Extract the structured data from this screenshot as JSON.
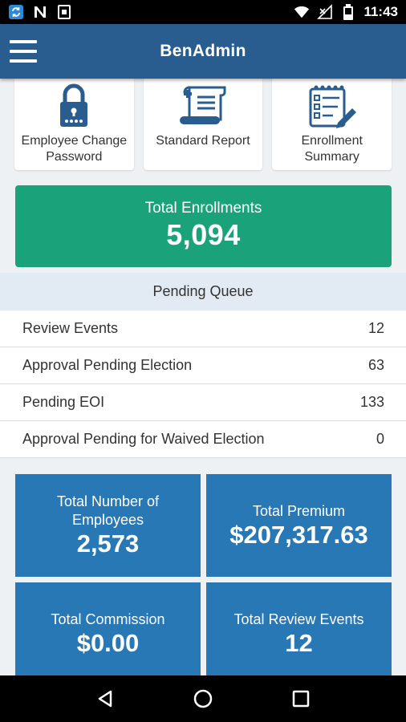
{
  "status_bar": {
    "time": "11:43",
    "icons": [
      "sync-icon",
      "n-icon",
      "sim-card-icon",
      "wifi-icon",
      "no-signal-icon",
      "battery-icon"
    ]
  },
  "app_bar": {
    "title": "BenAdmin",
    "menu_icon": "menu-icon"
  },
  "tiles": [
    {
      "label": "Employee Change Password",
      "icon": "lock-icon"
    },
    {
      "label": "Standard Report",
      "icon": "report-scroll-icon"
    },
    {
      "label": "Enrollment Summary",
      "icon": "clipboard-edit-icon"
    }
  ],
  "total_enrollments": {
    "label": "Total Enrollments",
    "value": "5,094"
  },
  "pending_queue": {
    "title": "Pending Queue",
    "rows": [
      {
        "label": "Review Events",
        "value": "12"
      },
      {
        "label": "Approval Pending Election",
        "value": "63"
      },
      {
        "label": "Pending EOI",
        "value": "133"
      },
      {
        "label": "Approval Pending for Waived Election",
        "value": "0"
      }
    ]
  },
  "stats": [
    {
      "label": "Total Number of Employees",
      "value": "2,573"
    },
    {
      "label": "Total Premium",
      "value": "$207,317.63"
    },
    {
      "label": "Total Commission",
      "value": "$0.00"
    },
    {
      "label": "Total Review Events",
      "value": "12"
    }
  ],
  "colors": {
    "app_bar": "#2a5d8f",
    "enroll_card": "#1aa37a",
    "stat_box": "#2878b5",
    "icon_blue": "#2a5d8f"
  },
  "nav_bar": {
    "icons": [
      "back-icon",
      "home-icon",
      "recents-icon"
    ]
  }
}
